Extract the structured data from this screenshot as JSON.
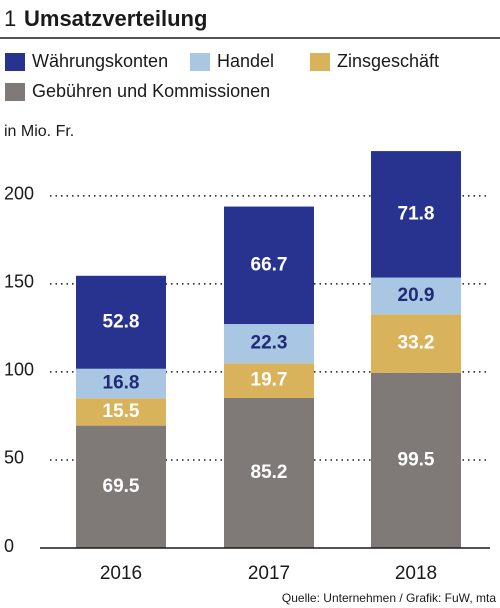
{
  "chart_data": {
    "type": "stacked_bar",
    "number": "1",
    "title": "Umsatzverteilung",
    "y_label": "in Mio. Fr.",
    "source": "Quelle: Unternehmen / Grafik: FuW, mta",
    "categories": [
      "2016",
      "2017",
      "2018"
    ],
    "series": [
      {
        "name": "Währungskonten",
        "color": "#27338f",
        "label_color": "#ffffff",
        "values": [
          52.8,
          66.7,
          71.8
        ]
      },
      {
        "name": "Handel",
        "color": "#a9c6e2",
        "label_color": "#1f2a78",
        "values": [
          16.8,
          22.3,
          20.9
        ]
      },
      {
        "name": "Zinsgeschäft",
        "color": "#d8b35b",
        "label_color": "#ffffff",
        "values": [
          15.5,
          19.7,
          33.2
        ]
      },
      {
        "name": "Gebühren und Kommissionen",
        "color": "#7f7a77",
        "label_color": "#ffffff",
        "values": [
          69.5,
          85.2,
          99.5
        ]
      }
    ],
    "ylim": [
      0,
      230
    ],
    "yticks": [
      0,
      50,
      100,
      150,
      200
    ],
    "grid": true
  }
}
